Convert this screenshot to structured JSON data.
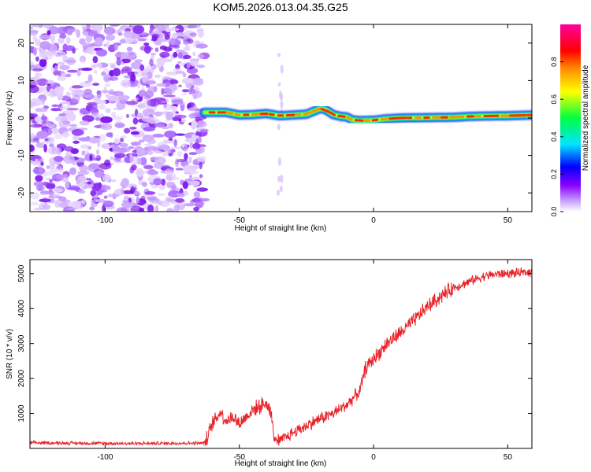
{
  "title": "KOM5.2026.013.04.35.G25",
  "chart_data": [
    {
      "type": "heatmap",
      "name": "spectrogram",
      "xlabel": "Height of straight line (km)",
      "ylabel": "Frequency (Hz)",
      "xlim": [
        -128,
        59
      ],
      "ylim": [
        -25,
        25
      ],
      "xticks": [
        -100,
        -50,
        0,
        50
      ],
      "yticks": [
        -20,
        -10,
        0,
        10,
        20
      ],
      "colorbar": {
        "label": "Normalized spectral amplitude",
        "range": [
          0.0,
          1.0
        ],
        "ticks": [
          0.0,
          0.2,
          0.4,
          0.6,
          0.8
        ],
        "tick_labels": [
          "0.0",
          "0.2",
          "0.4",
          "0.6",
          "0.8"
        ],
        "colormap": [
          "#ffffff",
          "#8a00ff",
          "#0000ff",
          "#00e5ff",
          "#00ff40",
          "#ffff00",
          "#ff9000",
          "#ff0000",
          "#ff00a0"
        ]
      },
      "noise_region_x": [
        -128,
        -63
      ],
      "signal_ridge": {
        "x": [
          -63,
          -55,
          -50,
          -45,
          -40,
          -35,
          -30,
          -25,
          -20,
          -18,
          -15,
          -12,
          -10,
          -8,
          -5,
          0,
          5,
          10,
          20,
          30,
          35,
          40,
          50,
          59
        ],
        "freq": [
          1.5,
          1.5,
          0.8,
          0.9,
          1.2,
          0.6,
          0.8,
          1.0,
          2.5,
          2.3,
          0.9,
          0.4,
          0.3,
          -0.5,
          -0.7,
          -0.6,
          -0.2,
          0.0,
          0.1,
          0.2,
          0.4,
          0.5,
          0.6,
          0.8
        ]
      },
      "spur_x": -35
    },
    {
      "type": "line",
      "name": "snr",
      "xlabel": "Height of straight line (km)",
      "ylabel": "SNR (10 * v/v)",
      "xlim": [
        -128,
        59
      ],
      "ylim": [
        0,
        5400
      ],
      "xticks": [
        -100,
        -50,
        0,
        50
      ],
      "yticks": [
        1000,
        2000,
        3000,
        4000,
        5000
      ],
      "color": "#e8242a",
      "series": [
        {
          "name": "SNR",
          "x": [
            -128,
            -110,
            -90,
            -70,
            -63,
            -62,
            -60,
            -57,
            -55,
            -52,
            -50,
            -45,
            -40,
            -38,
            -37,
            -35,
            -30,
            -25,
            -20,
            -15,
            -10,
            -5,
            -3,
            0,
            5,
            10,
            15,
            20,
            25,
            30,
            35,
            40,
            45,
            50,
            55,
            59
          ],
          "y": [
            160,
            150,
            140,
            150,
            150,
            300,
            700,
            1050,
            800,
            900,
            700,
            1100,
            1300,
            1000,
            250,
            200,
            450,
            650,
            850,
            1000,
            1250,
            1650,
            2300,
            2550,
            3000,
            3300,
            3650,
            4050,
            4350,
            4600,
            4750,
            4900,
            4980,
            5000,
            5020,
            5050
          ]
        }
      ]
    }
  ]
}
